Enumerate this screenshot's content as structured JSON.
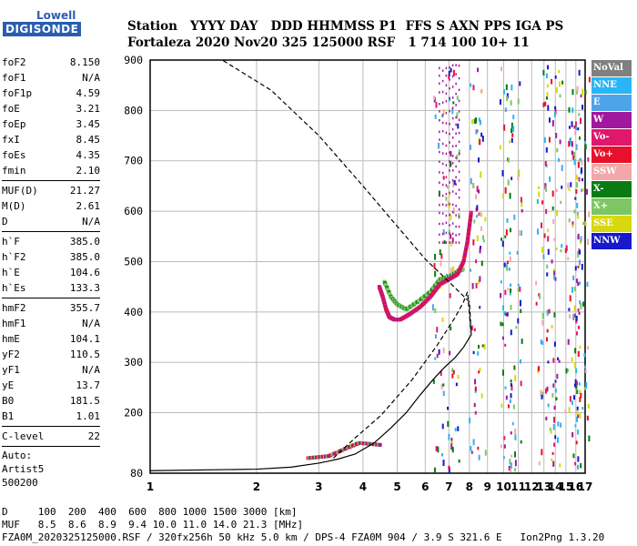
{
  "logo": {
    "line1": "Lowell",
    "line2": "DIGISONDE"
  },
  "header": {
    "row1": "Station   YYYY DAY   DDD HHMMSS P1  FFS S AXN PPS IGA PS",
    "row2": "Fortaleza 2020 Nov20 325 125000 RSF   1 714 100 10+ 11"
  },
  "params": {
    "group1": [
      {
        "name": "foF2",
        "value": "8.150"
      },
      {
        "name": "foF1",
        "value": "N/A"
      },
      {
        "name": "foF1p",
        "value": "4.59"
      },
      {
        "name": "foE",
        "value": "3.21"
      },
      {
        "name": "foEp",
        "value": "3.45"
      },
      {
        "name": "fxI",
        "value": "8.45"
      },
      {
        "name": "foEs",
        "value": "4.35"
      },
      {
        "name": "fmin",
        "value": "2.10"
      }
    ],
    "group2": [
      {
        "name": "MUF(D)",
        "value": "21.27"
      },
      {
        "name": "M(D)",
        "value": "2.61"
      },
      {
        "name": "D",
        "value": "N/A"
      }
    ],
    "group3": [
      {
        "name": "h`F",
        "value": "385.0"
      },
      {
        "name": "h`F2",
        "value": "385.0"
      },
      {
        "name": "h`E",
        "value": "104.6"
      },
      {
        "name": "h`Es",
        "value": "133.3"
      }
    ],
    "group4": [
      {
        "name": "hmF2",
        "value": "355.7"
      },
      {
        "name": "hmF1",
        "value": "N/A"
      },
      {
        "name": "hmE",
        "value": "104.1"
      },
      {
        "name": "yF2",
        "value": "110.5"
      },
      {
        "name": "yF1",
        "value": "N/A"
      },
      {
        "name": "yE",
        "value": "13.7"
      },
      {
        "name": "B0",
        "value": "181.5"
      },
      {
        "name": "B1",
        "value": "1.01"
      }
    ],
    "group5": [
      {
        "name": "C-level",
        "value": "22"
      }
    ],
    "auto_label": "Auto:",
    "autoscaler": "Artist5",
    "version": "500200"
  },
  "legend": [
    {
      "label": "NoVal",
      "color": "#808080"
    },
    {
      "label": "NNE",
      "color": "#29b6f6"
    },
    {
      "label": "E",
      "color": "#4fa3e8"
    },
    {
      "label": "W",
      "color": "#a0189c"
    },
    {
      "label": "Vo-",
      "color": "#e0186c"
    },
    {
      "label": "Vo+",
      "color": "#e8102a"
    },
    {
      "label": "SSW",
      "color": "#f2a8a8"
    },
    {
      "label": "X-",
      "color": "#0a7a12"
    },
    {
      "label": "X+",
      "color": "#7cc664"
    },
    {
      "label": "SSE",
      "color": "#d8d810"
    },
    {
      "label": "NNW",
      "color": "#1818cc"
    }
  ],
  "footer": {
    "d_row": "D     100  200  400  600  800 1000 1500 3000 [km]",
    "muf_row": "MUF   8.5  8.6  8.9  9.4 10.0 11.0 14.0 21.3 [MHz]",
    "info_row": "FZA0M_2020325125000.RSF / 320fx256h 50 kHz 5.0 km / DPS-4 FZA0M 904 / 3.9 S 321.6 E   Ion2Png 1.3.20"
  },
  "chart_data": {
    "type": "scatter",
    "xlim": [
      1,
      17
    ],
    "ylim": [
      80,
      900
    ],
    "x_ticks": [
      1,
      2,
      3,
      4,
      5,
      6,
      7,
      8,
      9,
      10,
      11,
      12,
      13,
      14,
      15,
      16,
      17
    ],
    "y_ticks": [
      80,
      200,
      300,
      400,
      500,
      600,
      700,
      800,
      900
    ],
    "grid": true,
    "xscale": "log",
    "profile_solid": [
      [
        1.0,
        85
      ],
      [
        2.0,
        88
      ],
      [
        2.5,
        92
      ],
      [
        3.0,
        100
      ],
      [
        3.2,
        104
      ],
      [
        3.4,
        108
      ],
      [
        3.8,
        118
      ],
      [
        4.3,
        140
      ],
      [
        4.8,
        170
      ],
      [
        5.3,
        200
      ],
      [
        5.8,
        235
      ],
      [
        6.3,
        265
      ],
      [
        6.8,
        290
      ],
      [
        7.3,
        310
      ],
      [
        7.7,
        330
      ],
      [
        8.1,
        355
      ]
    ],
    "profile_dashed": [
      [
        3.3,
        110
      ],
      [
        3.8,
        150
      ],
      [
        4.5,
        195
      ],
      [
        5.5,
        265
      ],
      [
        6.5,
        335
      ],
      [
        7.3,
        390
      ],
      [
        7.7,
        420
      ],
      [
        7.9,
        440
      ],
      [
        8.1,
        355
      ],
      [
        8.0,
        420
      ],
      [
        7.0,
        460
      ],
      [
        6.0,
        505
      ],
      [
        5.0,
        570
      ],
      [
        4.0,
        650
      ],
      [
        3.0,
        750
      ],
      [
        2.2,
        840
      ],
      [
        1.6,
        900
      ]
    ],
    "trace_oF2": [
      [
        4.45,
        450
      ],
      [
        4.55,
        430
      ],
      [
        4.65,
        405
      ],
      [
        4.75,
        390
      ],
      [
        4.9,
        385
      ],
      [
        5.1,
        385
      ],
      [
        5.4,
        395
      ],
      [
        5.8,
        410
      ],
      [
        6.2,
        430
      ],
      [
        6.6,
        455
      ],
      [
        7.0,
        465
      ],
      [
        7.4,
        475
      ],
      [
        7.7,
        500
      ],
      [
        7.9,
        540
      ],
      [
        8.0,
        570
      ],
      [
        8.1,
        600
      ]
    ],
    "trace_xF2": [
      [
        4.6,
        460
      ],
      [
        4.8,
        430
      ],
      [
        5.0,
        415
      ],
      [
        5.3,
        405
      ],
      [
        5.7,
        420
      ],
      [
        6.2,
        440
      ],
      [
        6.6,
        465
      ],
      [
        7.0,
        470
      ],
      [
        7.4,
        480
      ],
      [
        7.7,
        485
      ]
    ],
    "trace_Es": [
      [
        2.8,
        110
      ],
      [
        3.0,
        112
      ],
      [
        3.2,
        114
      ],
      [
        3.6,
        130
      ],
      [
        3.9,
        140
      ],
      [
        4.2,
        138
      ],
      [
        4.5,
        136
      ]
    ],
    "noise_columns": [
      6.5,
      6.9,
      7.2,
      8.3,
      8.5,
      10.1,
      10.3,
      10.8,
      12.8,
      13.6,
      14.1,
      15.4,
      15.8,
      16.3,
      16.7
    ]
  }
}
